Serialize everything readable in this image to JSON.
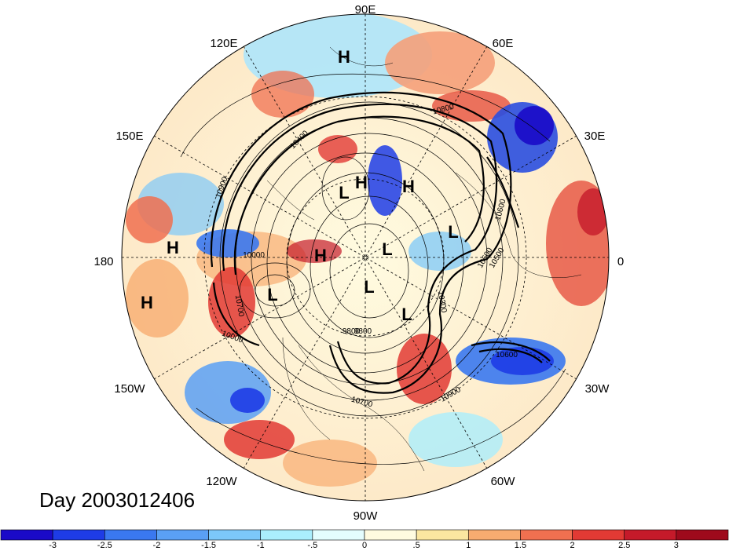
{
  "title": "Day 2003012406",
  "longitude_labels": [
    {
      "id": "lon-90e",
      "text": "90E"
    },
    {
      "id": "lon-60e",
      "text": "60E"
    },
    {
      "id": "lon-30e",
      "text": "30E"
    },
    {
      "id": "lon-0",
      "text": "0"
    },
    {
      "id": "lon-30w",
      "text": "30W"
    },
    {
      "id": "lon-60w",
      "text": "60W"
    },
    {
      "id": "lon-90w",
      "text": "90W"
    },
    {
      "id": "lon-120w",
      "text": "120W"
    },
    {
      "id": "lon-150w",
      "text": "150W"
    },
    {
      "id": "lon-180",
      "text": "180"
    },
    {
      "id": "lon-150e",
      "text": "150E"
    },
    {
      "id": "lon-120e",
      "text": "120E"
    }
  ],
  "pressure_markers": [
    "H",
    "H",
    "H",
    "H",
    "H",
    "H",
    "L",
    "L",
    "L",
    "L",
    "L",
    "L"
  ],
  "contour_labels": [
    "10800",
    "10900",
    "10400",
    "10700",
    "10000",
    "9800",
    "10500",
    "10600",
    "10300",
    "10900",
    "10700",
    "10000",
    "10600",
    "9800",
    "10500"
  ],
  "colorbar": {
    "colors": [
      "#1a0ac8",
      "#1e3ce6",
      "#3a78f0",
      "#5aa0f5",
      "#7cc8fa",
      "#aaeefd",
      "#e4fdfe",
      "#fffbe0",
      "#fbe6a0",
      "#f8ac70",
      "#f07050",
      "#e23a34",
      "#c51a2a",
      "#9e0a1c"
    ],
    "tick_labels": [
      "-3",
      "-2.5",
      "-2",
      "-1.5",
      "-1",
      "-.5",
      "0",
      ".5",
      "1",
      "1.5",
      "2",
      "2.5",
      "3"
    ]
  }
}
